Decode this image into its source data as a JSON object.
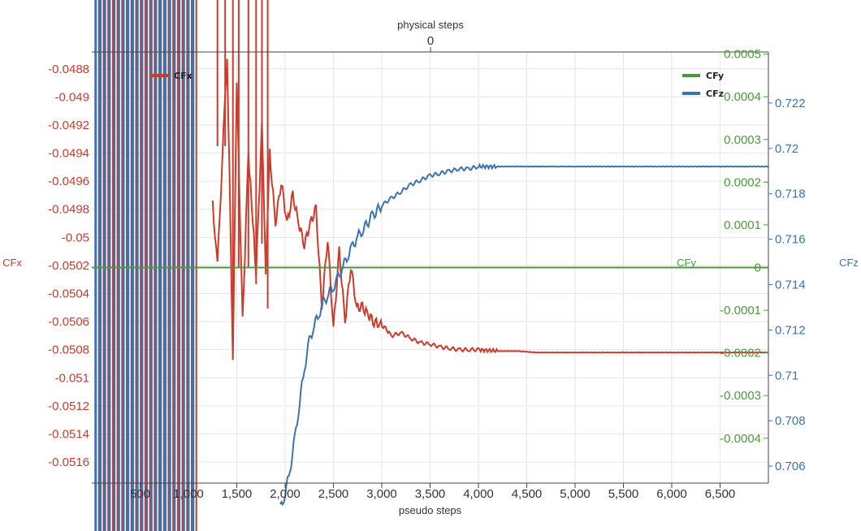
{
  "chart_data": {
    "type": "line",
    "title": "",
    "xlabel": "pseudo steps",
    "x2label": "physical steps",
    "x2_ticks": [
      "0"
    ],
    "xlim": [
      0,
      7000
    ],
    "x_ticks": [
      "500",
      "1,000",
      "1,500",
      "2,000",
      "2,500",
      "3,000",
      "3,500",
      "4,000",
      "4,500",
      "5,000",
      "5,500",
      "6,000",
      "6,500"
    ],
    "x_tick_values": [
      500,
      1000,
      1500,
      2000,
      2500,
      3000,
      3500,
      4000,
      4500,
      5000,
      5500,
      6000,
      6500
    ],
    "y_axes": {
      "CFx": {
        "label": "CFx",
        "side": "left",
        "range": [
          -0.05175,
          -0.04868
        ],
        "ticks": [
          "-0.0488",
          "-0.049",
          "-0.0492",
          "-0.0494",
          "-0.0496",
          "-0.0498",
          "-0.05",
          "-0.0502",
          "-0.0504",
          "-0.0506",
          "-0.0508",
          "-0.051",
          "-0.0512",
          "-0.0514",
          "-0.0516"
        ],
        "tick_values": [
          -0.0488,
          -0.049,
          -0.0492,
          -0.0494,
          -0.0496,
          -0.0498,
          -0.05,
          -0.0502,
          -0.0504,
          -0.0506,
          -0.0508,
          -0.051,
          -0.0512,
          -0.0514,
          -0.0516
        ]
      },
      "CFy": {
        "label": "CFy",
        "side": "right",
        "range": [
          -0.000505,
          0.000505
        ],
        "ticks": [
          "0.0005",
          "0.0004",
          "0.0003",
          "0.0002",
          "0.0001",
          "0",
          "-0.0001",
          "-0.0002",
          "-0.0003",
          "-0.0004"
        ],
        "tick_values": [
          0.0005,
          0.0004,
          0.0003,
          0.0002,
          0.0001,
          0,
          -0.0001,
          -0.0002,
          -0.0003,
          -0.0004
        ]
      },
      "CFz": {
        "label": "CFz",
        "side": "right",
        "range": [
          0.70525,
          0.72425
        ],
        "ticks": [
          "0.722",
          "0.72",
          "0.718",
          "0.716",
          "0.714",
          "0.712",
          "0.71",
          "0.708",
          "0.706"
        ],
        "tick_values": [
          0.722,
          0.72,
          0.718,
          0.716,
          0.714,
          0.712,
          0.71,
          0.708,
          0.706
        ]
      }
    },
    "series": [
      {
        "name": "CFx",
        "axis": "CFx",
        "color": "#cc3b2b",
        "x": [
          1250,
          1300,
          1400,
          1460,
          1500,
          1560,
          1620,
          1700,
          1760,
          1800,
          1840,
          1900,
          1960,
          2020,
          2080,
          2140,
          2200,
          2260,
          2320,
          2380,
          2440,
          2500,
          2560,
          2620,
          2680,
          2740,
          2800,
          2860,
          2920,
          2980,
          3040,
          3100,
          3200,
          3300,
          3400,
          3500,
          3600,
          3700,
          3800,
          3900,
          4000,
          4200,
          4400,
          4600,
          4800,
          5000,
          5500,
          6000,
          6500,
          7000
        ],
        "y": [
          -0.04975,
          -0.0502,
          -0.0487,
          -0.05085,
          -0.0489,
          -0.0506,
          -0.0494,
          -0.05025,
          -0.0492,
          -0.0503,
          -0.0494,
          -0.0499,
          -0.0496,
          -0.0499,
          -0.0497,
          -0.0499,
          -0.05005,
          -0.0499,
          -0.0498,
          -0.0505,
          -0.05,
          -0.05065,
          -0.0501,
          -0.0506,
          -0.0502,
          -0.0505,
          -0.0505,
          -0.05055,
          -0.0506,
          -0.05062,
          -0.05065,
          -0.0507,
          -0.05068,
          -0.05072,
          -0.05075,
          -0.05076,
          -0.05078,
          -0.05079,
          -0.0508,
          -0.0508,
          -0.0508,
          -0.05081,
          -0.05081,
          -0.05082,
          -0.05082,
          -0.05082,
          -0.05082,
          -0.05082,
          -0.05082,
          -0.05082
        ]
      },
      {
        "name": "CFy",
        "axis": "CFy",
        "color": "#4a9a3a",
        "x": [
          0,
          7000
        ],
        "y": [
          0,
          0
        ]
      },
      {
        "name": "CFz",
        "axis": "CFz",
        "color": "#3b73b0",
        "x": [
          1950,
          2000,
          2050,
          2100,
          2150,
          2200,
          2250,
          2300,
          2350,
          2400,
          2450,
          2500,
          2550,
          2600,
          2650,
          2700,
          2750,
          2800,
          2900,
          3000,
          3100,
          3200,
          3300,
          3400,
          3500,
          3600,
          3700,
          3800,
          3900,
          4000,
          4200,
          4400,
          4600,
          4800,
          5000,
          5500,
          6000,
          6500,
          7000
        ],
        "y": [
          0.7041,
          0.7048,
          0.7058,
          0.7072,
          0.7088,
          0.7103,
          0.7115,
          0.7122,
          0.7127,
          0.7132,
          0.7136,
          0.7139,
          0.7143,
          0.7148,
          0.7153,
          0.7157,
          0.7161,
          0.7164,
          0.717,
          0.7175,
          0.7178,
          0.7181,
          0.7184,
          0.7186,
          0.7188,
          0.7189,
          0.719,
          0.7191,
          0.7191,
          0.7192,
          0.7192,
          0.7192,
          0.7192,
          0.7192,
          0.7192,
          0.7192,
          0.7192,
          0.7192,
          0.7192
        ]
      }
    ],
    "legend": [
      {
        "name": "CFx",
        "color": "#cc3b2b",
        "placement": "top-left"
      },
      {
        "name": "CFy",
        "color": "#4a9a3a",
        "placement": "top-right"
      },
      {
        "name": "CFz",
        "color": "#3b73b0",
        "placement": "top-right"
      }
    ],
    "grid": true
  }
}
